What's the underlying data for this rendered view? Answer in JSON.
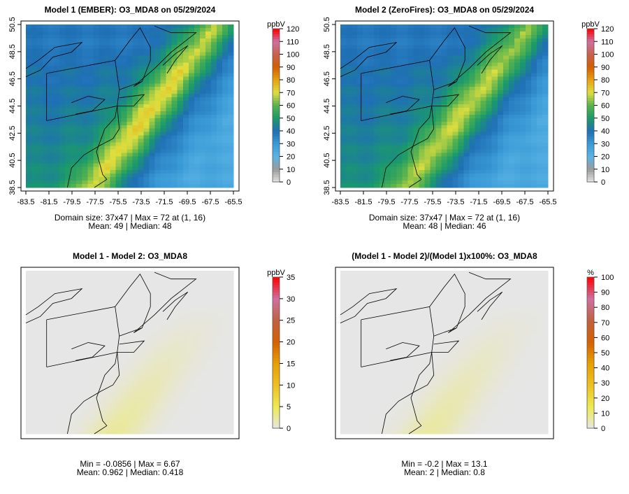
{
  "chart_data": [
    {
      "type": "heatmap",
      "title": "Model 1 (EMBER): O3_MDA8 on 05/29/2024",
      "field": "model1",
      "colorbar": {
        "label": "ppbV",
        "ticks": [
          "0",
          "10",
          "20",
          "30",
          "40",
          "50",
          "60",
          "70",
          "80",
          "90",
          "100",
          "110",
          "120"
        ],
        "range": [
          0,
          120
        ],
        "palette": "ozone"
      },
      "xticks": [
        "-83.5",
        "-81.5",
        "-79.5",
        "-77.5",
        "-75.5",
        "-73.5",
        "-71.5",
        "-69.5",
        "-67.5",
        "-65.5"
      ],
      "yticks": [
        "38.5",
        "40.5",
        "42.5",
        "44.5",
        "46.5",
        "48.5",
        "50.5"
      ],
      "xlim": [
        -83.5,
        -65.5
      ],
      "ylim": [
        38.5,
        50.5
      ],
      "stats": [
        "Domain size: 37x47 | Max = 72 at (1, 16)",
        "Mean: 49 |  Median: 48"
      ],
      "summary": {
        "max": 72,
        "mean": 49,
        "median": 48
      }
    },
    {
      "type": "heatmap",
      "title": "Model 2 (ZeroFires): O3_MDA8 on 05/29/2024",
      "field": "model2",
      "colorbar": {
        "label": "ppbV",
        "ticks": [
          "0",
          "10",
          "20",
          "30",
          "40",
          "50",
          "60",
          "70",
          "80",
          "90",
          "100",
          "110",
          "120"
        ],
        "range": [
          0,
          120
        ],
        "palette": "ozone"
      },
      "xticks": [
        "-83.5",
        "-81.5",
        "-79.5",
        "-77.5",
        "-75.5",
        "-73.5",
        "-71.5",
        "-69.5",
        "-67.5",
        "-65.5"
      ],
      "yticks": [
        "38.5",
        "40.5",
        "42.5",
        "44.5",
        "46.5",
        "48.5",
        "50.5"
      ],
      "xlim": [
        -83.5,
        -65.5
      ],
      "ylim": [
        38.5,
        50.5
      ],
      "stats": [
        "Domain size: 37x47 | Max = 72 at (1, 16)",
        "Mean: 48 |  Median: 46"
      ],
      "summary": {
        "max": 72,
        "mean": 48,
        "median": 46
      }
    },
    {
      "type": "heatmap",
      "title": "Model 1 - Model 2: O3_MDA8",
      "field": "diff",
      "colorbar": {
        "label": "ppbV",
        "ticks": [
          "0",
          "5",
          "10",
          "15",
          "20",
          "25",
          "30",
          "35"
        ],
        "range": [
          0,
          35
        ],
        "palette": "diff"
      },
      "stats": [
        "Min = -0.0856 | Max = 6.67",
        "Mean: 0.962 |  Median: 0.418"
      ],
      "summary": {
        "min": -0.0856,
        "max": 6.67,
        "mean": 0.962,
        "median": 0.418
      }
    },
    {
      "type": "heatmap",
      "title": "(Model 1 - Model 2)/(Model 1)x100%: O3_MDA8",
      "field": "pct",
      "colorbar": {
        "label": "%",
        "ticks": [
          "0",
          "10",
          "20",
          "30",
          "40",
          "50",
          "60",
          "70",
          "80",
          "90",
          "100"
        ],
        "range": [
          0,
          100
        ],
        "palette": "diff"
      },
      "stats": [
        "Min = -0.2 | Max = 13.1",
        "Mean: 2 |  Median: 0.8"
      ],
      "summary": {
        "min": -0.2,
        "max": 13.1,
        "mean": 2,
        "median": 0.8
      }
    }
  ],
  "palettes": {
    "ozone": [
      "#e6e6e6",
      "#9a9a9a",
      "#5ab4e5",
      "#3a9ad6",
      "#1f6fb5",
      "#1a9a6a",
      "#56b24e",
      "#dede3e",
      "#e8a20e",
      "#d45f00",
      "#c8604a",
      "#d070a0",
      "#ff0000"
    ],
    "diff": [
      "#e6e6e6",
      "#eeea50",
      "#eec020",
      "#e8a000",
      "#d86000",
      "#c06040",
      "#d070a0",
      "#ff0000"
    ]
  }
}
